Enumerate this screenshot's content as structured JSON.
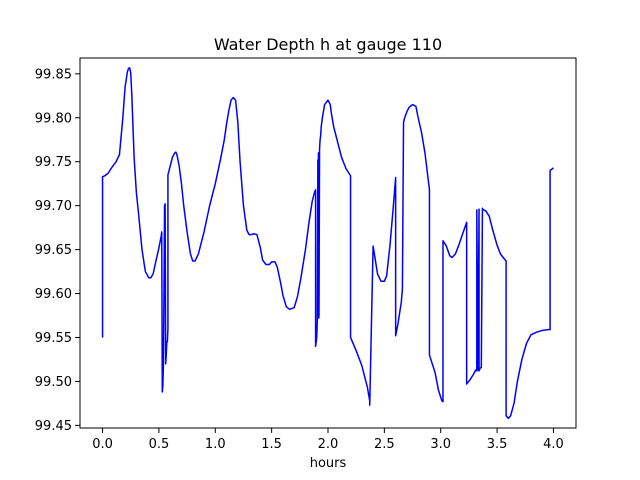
{
  "chart_data": {
    "type": "line",
    "title": "Water Depth h at gauge 110",
    "xlabel": "hours",
    "ylabel": "",
    "xlim": [
      -0.2,
      4.2
    ],
    "ylim": [
      99.447,
      99.868
    ],
    "xticks": [
      0.0,
      0.5,
      1.0,
      1.5,
      2.0,
      2.5,
      3.0,
      3.5,
      4.0
    ],
    "xtick_labels": [
      "0.0",
      "0.5",
      "1.0",
      "1.5",
      "2.0",
      "2.5",
      "3.0",
      "3.5",
      "4.0"
    ],
    "yticks": [
      99.45,
      99.5,
      99.55,
      99.6,
      99.65,
      99.7,
      99.75,
      99.8,
      99.85
    ],
    "ytick_labels": [
      "99.45",
      "99.50",
      "99.55",
      "99.60",
      "99.65",
      "99.70",
      "99.75",
      "99.80",
      "99.85"
    ],
    "grid": false,
    "legend": "none",
    "line_color": "#0000ff",
    "series": [
      {
        "x": [
          0.0,
          0.0,
          0.02,
          0.05,
          0.08,
          0.12,
          0.15,
          0.18,
          0.2,
          0.22,
          0.23,
          0.24,
          0.25,
          0.26,
          0.27,
          0.28,
          0.3,
          0.32,
          0.35,
          0.38,
          0.41,
          0.43,
          0.45,
          0.47,
          0.5,
          0.52,
          0.525,
          0.53,
          0.535,
          0.54,
          0.545,
          0.55,
          0.555,
          0.56,
          0.565,
          0.57,
          0.575,
          0.58,
          0.58,
          0.62,
          0.64,
          0.65,
          0.66,
          0.68,
          0.7,
          0.72,
          0.75,
          0.78,
          0.8,
          0.82,
          0.85,
          0.9,
          0.95,
          1.0,
          1.05,
          1.08,
          1.1,
          1.12,
          1.14,
          1.16,
          1.18,
          1.2,
          1.22,
          1.25,
          1.28,
          1.3,
          1.32,
          1.34,
          1.37,
          1.4,
          1.42,
          1.45,
          1.48,
          1.5,
          1.53,
          1.55,
          1.58,
          1.6,
          1.63,
          1.66,
          1.7,
          1.73,
          1.76,
          1.8,
          1.83,
          1.86,
          1.88,
          1.89,
          1.89,
          1.9,
          1.905,
          1.91,
          1.912,
          1.915,
          1.918,
          1.92,
          1.925,
          1.93,
          1.935,
          1.94,
          1.95,
          1.97,
          2.0,
          2.02,
          2.03,
          2.05,
          2.08,
          2.12,
          2.16,
          2.2,
          2.2,
          2.25,
          2.3,
          2.35,
          2.37,
          2.37,
          2.4,
          2.42,
          2.44,
          2.47,
          2.5,
          2.52,
          2.55,
          2.58,
          2.6,
          2.6,
          2.62,
          2.65,
          2.66,
          2.67,
          2.68,
          2.7,
          2.72,
          2.75,
          2.78,
          2.8,
          2.83,
          2.86,
          2.9,
          2.9,
          2.95,
          2.98,
          3.0,
          3.01,
          3.02,
          3.02,
          3.05,
          3.08,
          3.1,
          3.13,
          3.16,
          3.2,
          3.23,
          3.23,
          3.26,
          3.29,
          3.31,
          3.32,
          3.32,
          3.33,
          3.34,
          3.34,
          3.35,
          3.36,
          3.37,
          3.37,
          3.4,
          3.43,
          3.46,
          3.5,
          3.53,
          3.56,
          3.58,
          3.58,
          3.6,
          3.62,
          3.65,
          3.68,
          3.72,
          3.76,
          3.8,
          3.85,
          3.9,
          3.95,
          3.97,
          3.97,
          4.0
        ],
        "y": [
          99.55,
          99.733,
          99.734,
          99.737,
          99.743,
          99.75,
          99.758,
          99.8,
          99.835,
          99.852,
          99.856,
          99.857,
          99.851,
          99.825,
          99.79,
          99.755,
          99.715,
          99.69,
          99.65,
          99.625,
          99.618,
          99.618,
          99.623,
          99.635,
          99.652,
          99.665,
          99.67,
          99.488,
          99.495,
          99.52,
          99.6,
          99.7,
          99.702,
          99.52,
          99.53,
          99.545,
          99.545,
          99.56,
          99.735,
          99.755,
          99.76,
          99.761,
          99.758,
          99.745,
          99.725,
          99.7,
          99.67,
          99.645,
          99.637,
          99.637,
          99.645,
          99.67,
          99.7,
          99.725,
          99.755,
          99.775,
          99.793,
          99.808,
          99.82,
          99.823,
          99.82,
          99.795,
          99.75,
          99.7,
          99.672,
          99.667,
          99.667,
          99.668,
          99.667,
          99.652,
          99.638,
          99.633,
          99.633,
          99.636,
          99.636,
          99.63,
          99.612,
          99.598,
          99.585,
          99.582,
          99.584,
          99.597,
          99.618,
          99.65,
          99.68,
          99.705,
          99.715,
          99.718,
          99.54,
          99.55,
          99.57,
          99.752,
          99.58,
          99.76,
          99.572,
          99.575,
          99.765,
          99.775,
          99.78,
          99.79,
          99.8,
          99.815,
          99.82,
          99.815,
          99.805,
          99.79,
          99.775,
          99.755,
          99.742,
          99.734,
          99.55,
          99.535,
          99.518,
          99.493,
          99.478,
          99.473,
          99.654,
          99.638,
          99.622,
          99.614,
          99.614,
          99.62,
          99.655,
          99.7,
          99.732,
          99.552,
          99.565,
          99.59,
          99.605,
          99.795,
          99.8,
          99.807,
          99.812,
          99.815,
          99.813,
          99.8,
          99.783,
          99.76,
          99.718,
          99.53,
          99.51,
          99.49,
          99.482,
          99.478,
          99.477,
          99.66,
          99.654,
          99.643,
          99.641,
          99.645,
          99.655,
          99.67,
          99.681,
          99.497,
          99.502,
          99.508,
          99.513,
          99.512,
          99.695,
          99.513,
          99.696,
          99.512,
          99.515,
          99.516,
          99.697,
          99.696,
          99.694,
          99.688,
          99.673,
          99.655,
          99.645,
          99.64,
          99.637,
          99.461,
          99.458,
          99.461,
          99.475,
          99.5,
          99.525,
          99.543,
          99.553,
          99.556,
          99.558,
          99.559,
          99.559,
          99.74,
          99.743
        ]
      }
    ]
  }
}
